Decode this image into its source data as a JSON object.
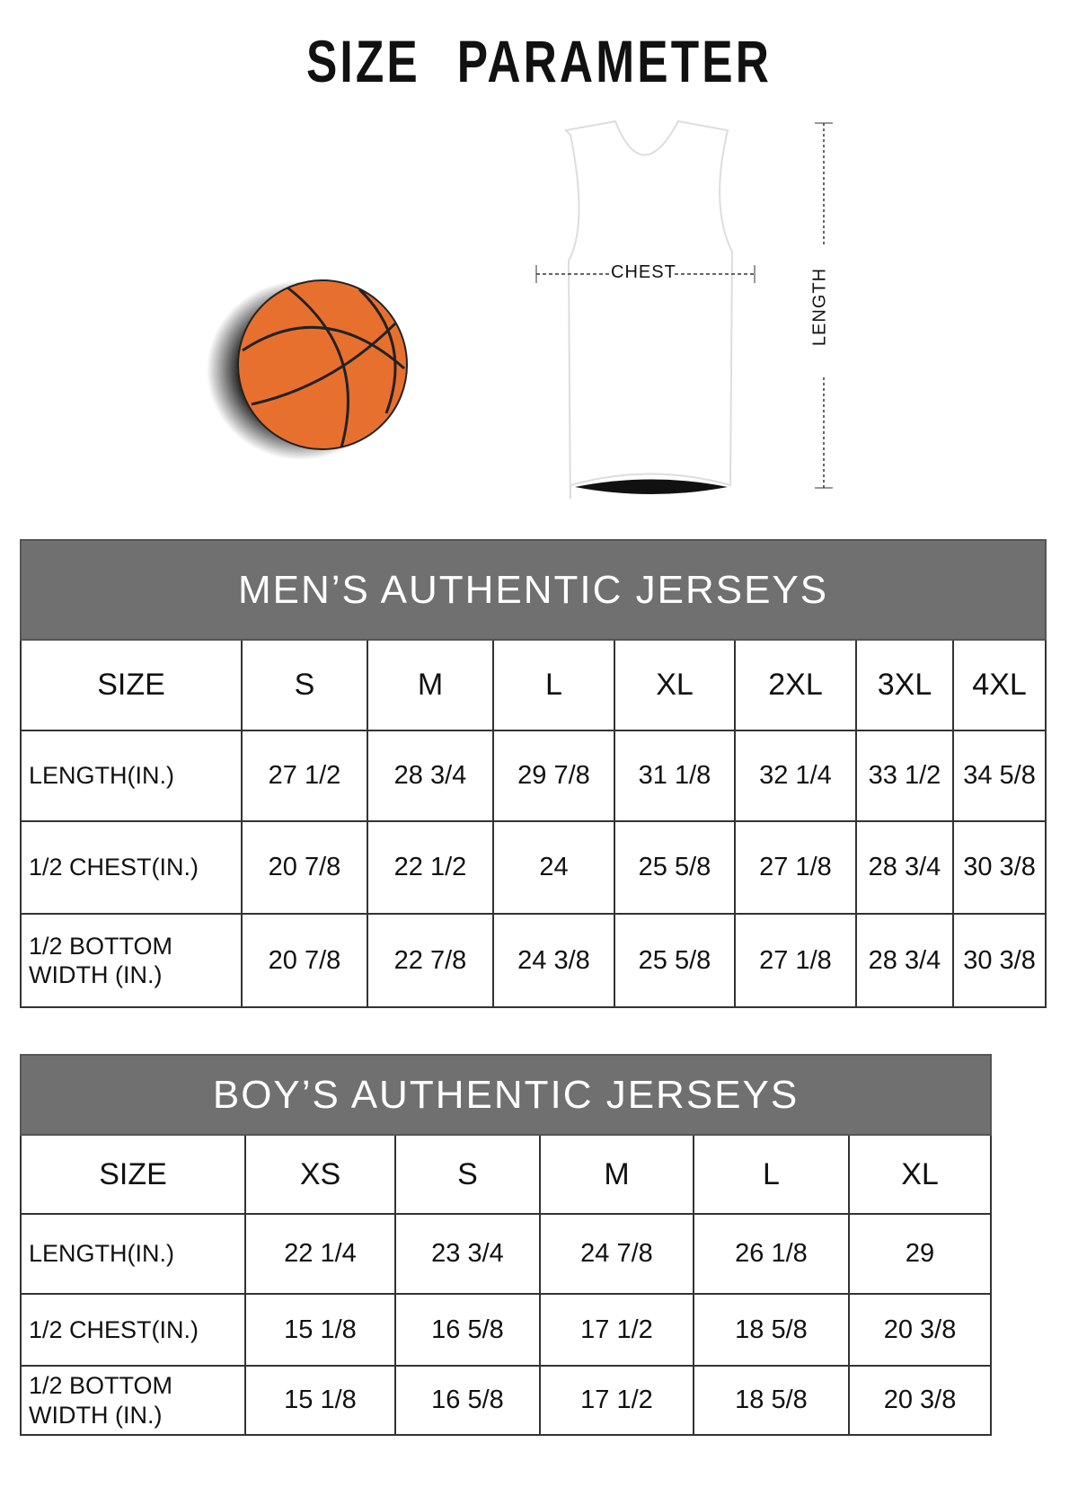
{
  "title": "SIZE PARAMETER",
  "diagram": {
    "chest_label": "CHEST",
    "length_label": "LENGTH",
    "ball_color": "#e8702e"
  },
  "mens": {
    "heading": "MEN’S AUTHENTIC JERSEYS",
    "columns": [
      "SIZE",
      "S",
      "M",
      "L",
      "XL",
      "2XL",
      "3XL",
      "4XL"
    ],
    "rows": [
      {
        "label": "LENGTH(IN.)",
        "values": [
          "27 1/2",
          "28 3/4",
          "29 7/8",
          "31 1/8",
          "32 1/4",
          "33 1/2",
          "34 5/8"
        ]
      },
      {
        "label": "1/2 CHEST(IN.)",
        "values": [
          "20 7/8",
          "22 1/2",
          "24",
          "25 5/8",
          "27 1/8",
          "28 3/4",
          "30 3/8"
        ]
      },
      {
        "label": "1/2 BOTTOM WIDTH (IN.)",
        "values": [
          "20 7/8",
          "22 7/8",
          "24 3/8",
          "25 5/8",
          "27 1/8",
          "28 3/4",
          "30 3/8"
        ]
      }
    ]
  },
  "boys": {
    "heading": "BOY’S AUTHENTIC JERSEYS",
    "columns": [
      "SIZE",
      "XS",
      "S",
      "M",
      "L",
      "XL"
    ],
    "rows": [
      {
        "label": "LENGTH(IN.)",
        "values": [
          "22 1/4",
          "23 3/4",
          "24 7/8",
          "26 1/8",
          "29"
        ]
      },
      {
        "label": "1/2 CHEST(IN.)",
        "values": [
          "15 1/8",
          "16 5/8",
          "17 1/2",
          "18 5/8",
          "20 3/8"
        ]
      },
      {
        "label": "1/2 BOTTOM WIDTH (IN.)",
        "values": [
          "15 1/8",
          "16 5/8",
          "17 1/2",
          "18 5/8",
          "20 3/8"
        ]
      }
    ]
  }
}
